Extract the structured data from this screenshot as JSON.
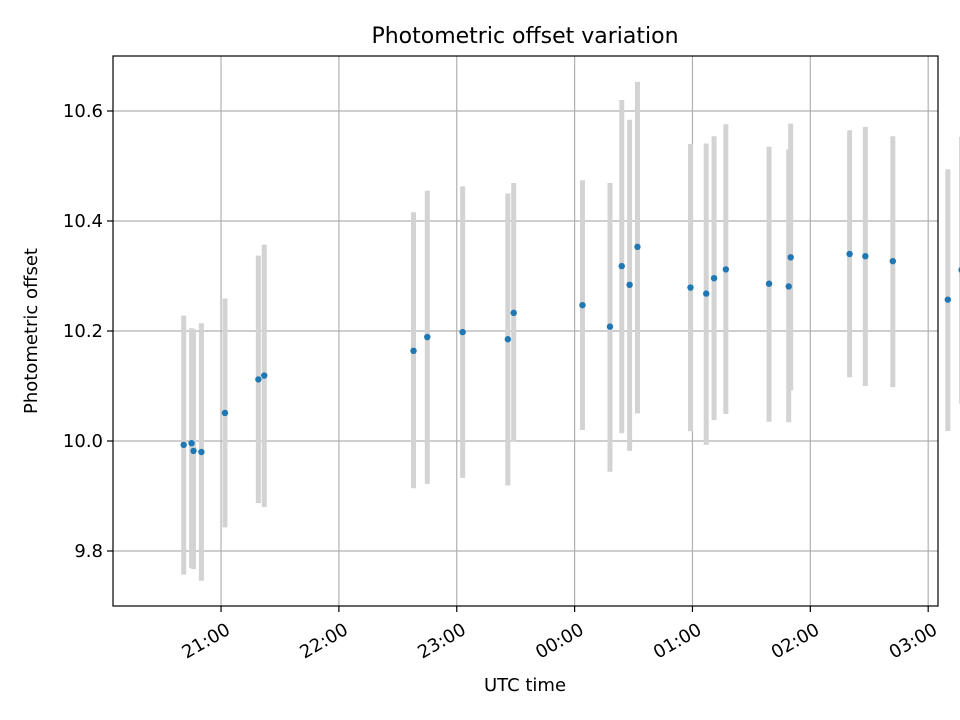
{
  "chart_data": {
    "type": "scatter",
    "title": "Photometric offset variation",
    "xlabel": "UTC time",
    "ylabel": "Photometric offset",
    "xlim": [
      "20:05",
      "03:05"
    ],
    "ylim": [
      9.7,
      10.7
    ],
    "x_ticks": [
      "21:00",
      "22:00",
      "23:00",
      "00:00",
      "01:00",
      "02:00",
      "03:00"
    ],
    "y_ticks": [
      "9.8",
      "10.0",
      "10.2",
      "10.4",
      "10.6"
    ],
    "grid": true,
    "colors": {
      "point": "#1f77b4",
      "errorbar": "#d3d3d3",
      "grid": "#b0b0b0"
    },
    "series": [
      {
        "points": [
          {
            "x": "20:41",
            "y": 9.993,
            "ylo": 9.757,
            "yhi": 10.228
          },
          {
            "x": "20:45",
            "y": 9.996,
            "ylo": 9.769,
            "yhi": 10.205
          },
          {
            "x": "20:46",
            "y": 9.982,
            "ylo": 9.767,
            "yhi": 10.203
          },
          {
            "x": "20:50",
            "y": 9.98,
            "ylo": 9.746,
            "yhi": 10.214
          },
          {
            "x": "21:02",
            "y": 10.051,
            "ylo": 9.843,
            "yhi": 10.259
          },
          {
            "x": "21:19",
            "y": 10.112,
            "ylo": 9.887,
            "yhi": 10.337
          },
          {
            "x": "21:22",
            "y": 10.119,
            "ylo": 9.88,
            "yhi": 10.357
          },
          {
            "x": "22:38",
            "y": 10.164,
            "ylo": 9.914,
            "yhi": 10.416
          },
          {
            "x": "22:45",
            "y": 10.189,
            "ylo": 9.922,
            "yhi": 10.455
          },
          {
            "x": "23:03",
            "y": 10.198,
            "ylo": 9.933,
            "yhi": 10.463
          },
          {
            "x": "23:26",
            "y": 10.185,
            "ylo": 9.919,
            "yhi": 10.45
          },
          {
            "x": "23:29",
            "y": 10.233,
            "ylo": 9.999,
            "yhi": 10.469
          },
          {
            "x": "00:04",
            "y": 10.247,
            "ylo": 10.02,
            "yhi": 10.474
          },
          {
            "x": "00:18",
            "y": 10.208,
            "ylo": 9.944,
            "yhi": 10.469
          },
          {
            "x": "00:24",
            "y": 10.318,
            "ylo": 10.014,
            "yhi": 10.62
          },
          {
            "x": "00:28",
            "y": 10.284,
            "ylo": 9.982,
            "yhi": 10.584
          },
          {
            "x": "00:32",
            "y": 10.353,
            "ylo": 10.05,
            "yhi": 10.653
          },
          {
            "x": "00:59",
            "y": 10.279,
            "ylo": 10.018,
            "yhi": 10.54
          },
          {
            "x": "01:07",
            "y": 10.268,
            "ylo": 9.993,
            "yhi": 10.541
          },
          {
            "x": "01:11",
            "y": 10.296,
            "ylo": 10.038,
            "yhi": 10.554
          },
          {
            "x": "01:17",
            "y": 10.312,
            "ylo": 10.049,
            "yhi": 10.576
          },
          {
            "x": "01:39",
            "y": 10.286,
            "ylo": 10.035,
            "yhi": 10.535
          },
          {
            "x": "01:49",
            "y": 10.281,
            "ylo": 10.034,
            "yhi": 10.53
          },
          {
            "x": "01:50",
            "y": 10.334,
            "ylo": 10.092,
            "yhi": 10.577
          },
          {
            "x": "02:20",
            "y": 10.34,
            "ylo": 10.116,
            "yhi": 10.565
          },
          {
            "x": "02:28",
            "y": 10.336,
            "ylo": 10.1,
            "yhi": 10.571
          },
          {
            "x": "02:42",
            "y": 10.327,
            "ylo": 10.098,
            "yhi": 10.554
          },
          {
            "x": "03:10",
            "y": 10.257,
            "ylo": 10.018,
            "yhi": 10.494
          },
          {
            "x": "03:17",
            "y": 10.311,
            "ylo": 10.068,
            "yhi": 10.553
          }
        ]
      }
    ]
  }
}
